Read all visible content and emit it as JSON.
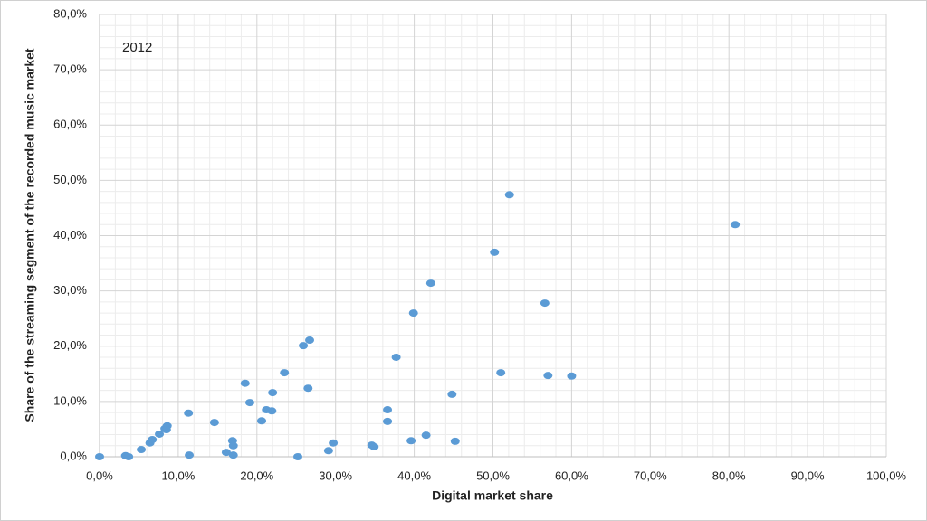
{
  "chart_data": {
    "type": "scatter",
    "annotations": [
      "2012"
    ],
    "x_label": "Digital market share",
    "y_label": "Share of the streaming segment of the recorded music market",
    "color": "#5b9bd5",
    "grid": true,
    "minor_grid_divisions": 5,
    "xlim": [
      0,
      100
    ],
    "ylim": [
      0,
      80
    ],
    "xticks": [
      {
        "value": 0,
        "label": "0,0%"
      },
      {
        "value": 10,
        "label": "10,0%"
      },
      {
        "value": 20,
        "label": "20,0%"
      },
      {
        "value": 30,
        "label": "30,0%"
      },
      {
        "value": 40,
        "label": "40,0%"
      },
      {
        "value": 50,
        "label": "50,0%"
      },
      {
        "value": 60,
        "label": "60,0%"
      },
      {
        "value": 70,
        "label": "70,0%"
      },
      {
        "value": 80,
        "label": "80,0%"
      },
      {
        "value": 90,
        "label": "90,0%"
      },
      {
        "value": 100,
        "label": "100,0%"
      }
    ],
    "yticks": [
      {
        "value": 0,
        "label": "0,0%"
      },
      {
        "value": 10,
        "label": "10,0%"
      },
      {
        "value": 20,
        "label": "20,0%"
      },
      {
        "value": 30,
        "label": "30,0%"
      },
      {
        "value": 40,
        "label": "40,0%"
      },
      {
        "value": 50,
        "label": "50,0%"
      },
      {
        "value": 60,
        "label": "60,0%"
      },
      {
        "value": 70,
        "label": "70,0%"
      },
      {
        "value": 80,
        "label": "80,0%"
      }
    ],
    "x": [
      0,
      3.3,
      3.7,
      5.3,
      6.4,
      6.7,
      7.6,
      8.3,
      8.6,
      8.5,
      11.3,
      11.4,
      14.6,
      16.1,
      16.9,
      17.0,
      17.0,
      18.5,
      19.1,
      20.6,
      21.2,
      21.9,
      22.0,
      23.5,
      25.2,
      25.9,
      26.5,
      26.7,
      29.1,
      29.7,
      34.6,
      34.9,
      36.6,
      36.6,
      37.7,
      39.6,
      39.9,
      41.5,
      42.1,
      44.8,
      45.2,
      50.2,
      51.0,
      52.1,
      56.6,
      57.0,
      60.0,
      80.8
    ],
    "values": [
      0,
      0.2,
      0,
      1.3,
      2.5,
      3.1,
      4.1,
      5.1,
      5.6,
      4.9,
      7.9,
      0.3,
      6.2,
      0.8,
      2.9,
      2.0,
      0.3,
      13.3,
      9.8,
      6.5,
      8.5,
      8.3,
      11.6,
      15.2,
      0,
      20.1,
      12.4,
      21.1,
      1.1,
      2.5,
      2.1,
      1.8,
      8.5,
      6.4,
      18.0,
      2.9,
      26.0,
      3.9,
      31.4,
      11.3,
      2.8,
      37.0,
      15.2,
      47.4,
      27.8,
      14.7,
      14.6,
      42.0
    ]
  }
}
